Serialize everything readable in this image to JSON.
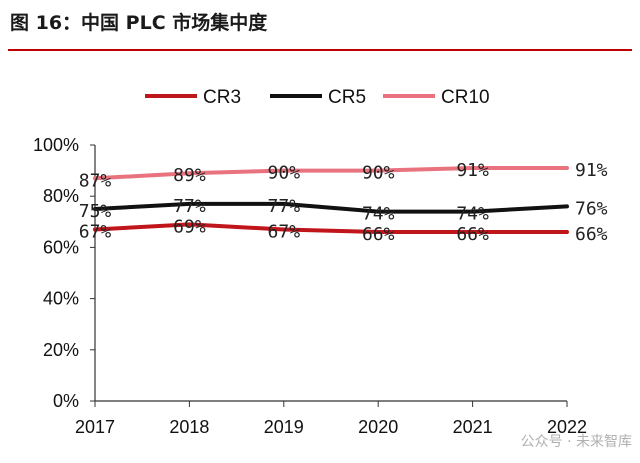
{
  "figure": {
    "title": "图 16：中国 PLC 市场集中度",
    "watermark": "公众号 · 未来智库"
  },
  "chart_data": {
    "type": "line",
    "title": "图 16：中国 PLC 市场集中度",
    "xlabel": "",
    "ylabel": "",
    "categories": [
      "2017",
      "2018",
      "2019",
      "2020",
      "2021",
      "2022"
    ],
    "ylim": [
      0,
      100
    ],
    "yticks": [
      "0%",
      "20%",
      "40%",
      "60%",
      "80%",
      "100%"
    ],
    "ytick_values": [
      0,
      20,
      40,
      60,
      80,
      100
    ],
    "legend_position": "top",
    "grid": false,
    "series": [
      {
        "name": "CR3",
        "color": "#c0151b",
        "values": [
          67,
          69,
          67,
          66,
          66,
          66
        ],
        "labels": [
          "67%",
          "69%",
          "67%",
          "66%",
          "66%",
          "66%"
        ]
      },
      {
        "name": "CR5",
        "color": "#111111",
        "values": [
          75,
          77,
          77,
          74,
          74,
          76
        ],
        "labels": [
          "75%",
          "77%",
          "77%",
          "74%",
          "74%",
          "76%"
        ]
      },
      {
        "name": "CR10",
        "color": "#e8737e",
        "values": [
          87,
          89,
          90,
          90,
          91,
          91
        ],
        "labels": [
          "87%",
          "89%",
          "90%",
          "90%",
          "91%",
          "91%"
        ]
      }
    ]
  }
}
